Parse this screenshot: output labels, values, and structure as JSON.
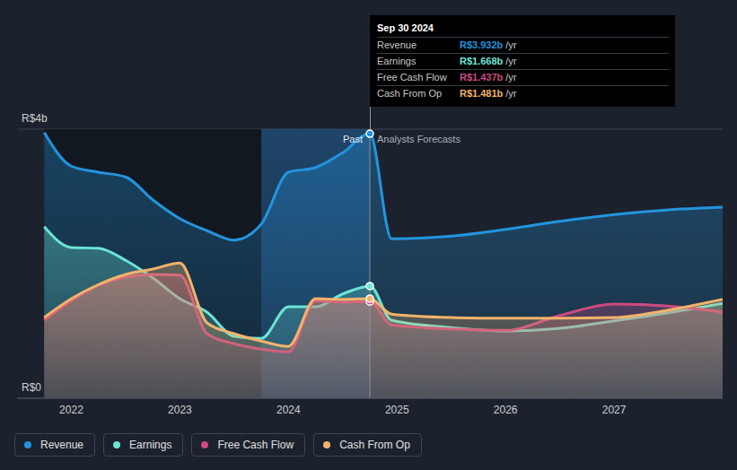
{
  "chart_data": {
    "type": "area",
    "x": [
      2021.75,
      2022.0,
      2022.25,
      2022.5,
      2022.75,
      2023.0,
      2023.25,
      2023.5,
      2023.75,
      2024.0,
      2024.25,
      2024.5,
      2024.75,
      2024.95,
      2025.5,
      2026.0,
      2026.5,
      2027.0,
      2027.5,
      2028.0
    ],
    "xlim": [
      2021.5,
      2028
    ],
    "xticks": [
      2022,
      2023,
      2024,
      2025,
      2026,
      2027
    ],
    "ylim": [
      0,
      4
    ],
    "yticks": [
      {
        "value": 0,
        "label": "R$0"
      },
      {
        "value": 4,
        "label": "R$4b"
      }
    ],
    "grid": true,
    "legend": "bottom",
    "series": [
      {
        "name": "Revenue",
        "color": "#2394df",
        "values": [
          3.95,
          3.45,
          3.36,
          3.29,
          2.95,
          2.67,
          2.49,
          2.35,
          2.59,
          3.36,
          3.43,
          3.65,
          3.932,
          2.37,
          2.41,
          2.51,
          2.63,
          2.73,
          2.8,
          2.84
        ]
      },
      {
        "name": "Earnings",
        "color": "#6ce4d4",
        "values": [
          2.55,
          2.24,
          2.23,
          2.05,
          1.79,
          1.48,
          1.28,
          0.92,
          0.89,
          1.36,
          1.36,
          1.55,
          1.668,
          1.16,
          1.05,
          1.0,
          1.04,
          1.15,
          1.27,
          1.41
        ]
      },
      {
        "name": "Free Cash Flow",
        "color": "#cc4a80",
        "values": [
          1.16,
          1.45,
          1.68,
          1.8,
          1.84,
          1.83,
          0.96,
          0.81,
          0.73,
          0.69,
          1.45,
          1.43,
          1.437,
          1.09,
          1.03,
          1.01,
          1.23,
          1.4,
          1.37,
          1.28
        ]
      },
      {
        "name": "Cash From Op",
        "color": "#f2b36b",
        "values": [
          1.2,
          1.48,
          1.69,
          1.84,
          1.92,
          2.01,
          1.12,
          0.96,
          0.85,
          0.77,
          1.48,
          1.47,
          1.481,
          1.25,
          1.2,
          1.19,
          1.19,
          1.2,
          1.31,
          1.47
        ]
      }
    ],
    "highlight": [
      2023.75,
      2024.75
    ],
    "annotations": [
      {
        "text": "Past",
        "x": 2024.75
      },
      {
        "text": "Analysts Forecasts",
        "x": 2024.75
      }
    ],
    "tooltip": {
      "title": "Sep 30 2024",
      "x": 2024.75,
      "rows": [
        {
          "name": "Revenue",
          "value": 3.932,
          "label": "R$3.932b",
          "unit": "/yr"
        },
        {
          "name": "Earnings",
          "value": 1.668,
          "label": "R$1.668b",
          "unit": "/yr"
        },
        {
          "name": "Free Cash Flow",
          "value": 1.437,
          "label": "R$1.437b",
          "unit": "/yr"
        },
        {
          "name": "Cash From Op",
          "value": 1.481,
          "label": "R$1.481b",
          "unit": "/yr"
        }
      ]
    }
  }
}
